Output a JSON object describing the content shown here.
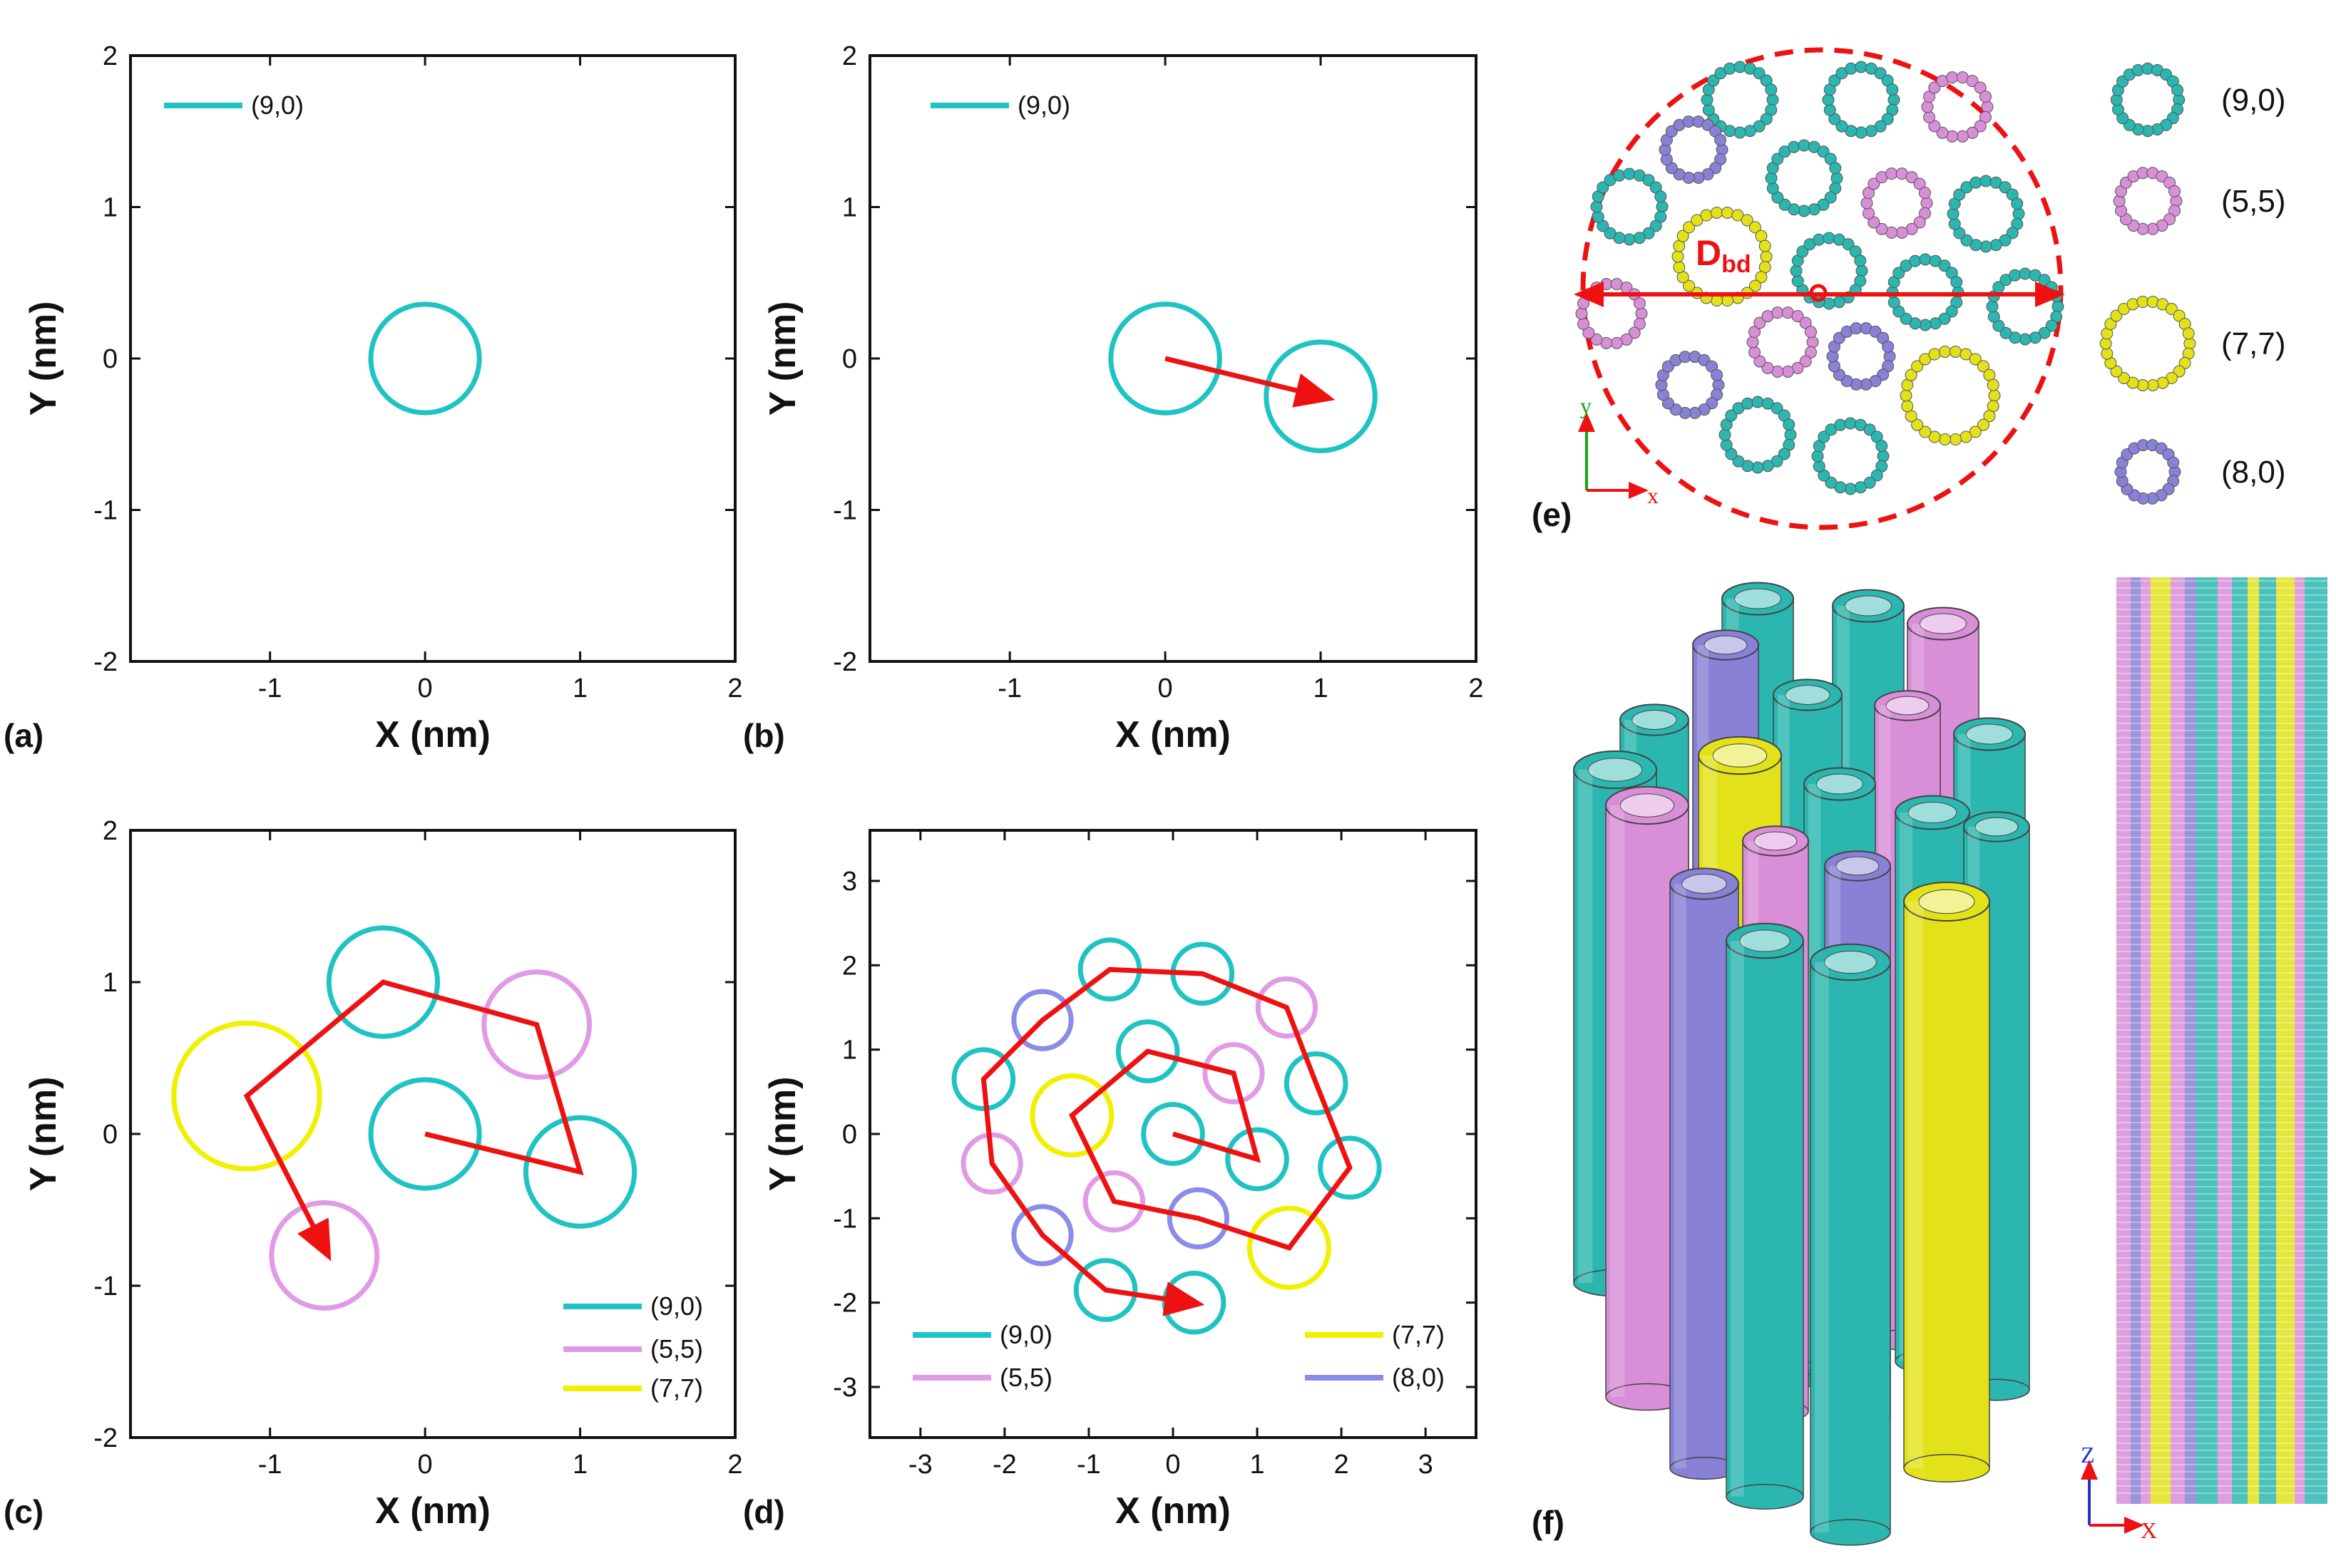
{
  "colors": {
    "cyan": "#1fc3c3",
    "pink": "#e09ae6",
    "yellow": "#f0f000",
    "blue": "#8a8de8",
    "red": "#ee1111",
    "atom_cyan": "#2bb7b0",
    "atom_pink": "#d98ed8",
    "atom_yellow": "#e3e21a",
    "atom_blue": "#8881d6"
  },
  "chart_data": [
    {
      "panel_label": "(a)",
      "type": "scatter",
      "xlabel": "X (nm)",
      "ylabel": "Y (nm)",
      "xlim": [
        -1.9,
        2.0
      ],
      "ylim": [
        -2,
        2
      ],
      "xticks": [
        -1,
        0,
        1,
        2
      ],
      "yticks": [
        -2,
        -1,
        0,
        1,
        2
      ],
      "series": [
        {
          "name": "(9,0)",
          "color_key": "cyan"
        }
      ],
      "circles": [
        {
          "x": 0,
          "y": 0,
          "r": 0.35,
          "type": "(9,0)"
        }
      ],
      "path": [],
      "legend": [
        {
          "label": "(9,0)",
          "color_key": "cyan"
        }
      ]
    },
    {
      "panel_label": "(b)",
      "type": "scatter",
      "xlabel": "X (nm)",
      "ylabel": "Y (nm)",
      "xlim": [
        -1.9,
        2.0
      ],
      "ylim": [
        -2,
        2
      ],
      "xticks": [
        -1,
        0,
        1,
        2
      ],
      "yticks": [
        -2,
        -1,
        0,
        1,
        2
      ],
      "circles": [
        {
          "x": 0,
          "y": 0,
          "r": 0.35,
          "type": "(9,0)"
        },
        {
          "x": 1.0,
          "y": -0.25,
          "r": 0.35,
          "type": "(9,0)"
        }
      ],
      "path": [
        [
          0,
          0
        ],
        [
          1.0,
          -0.25
        ]
      ],
      "legend": [
        {
          "label": "(9,0)",
          "color_key": "cyan"
        }
      ]
    },
    {
      "panel_label": "(c)",
      "type": "scatter",
      "xlabel": "X (nm)",
      "ylabel": "Y (nm)",
      "xlim": [
        -1.9,
        2.0
      ],
      "ylim": [
        -2,
        2
      ],
      "xticks": [
        -1,
        0,
        1,
        2
      ],
      "yticks": [
        -2,
        -1,
        0,
        1,
        2
      ],
      "circles": [
        {
          "x": 0,
          "y": 0,
          "r": 0.35,
          "type": "(9,0)"
        },
        {
          "x": 1.0,
          "y": -0.25,
          "r": 0.35,
          "type": "(9,0)"
        },
        {
          "x": 0.72,
          "y": 0.72,
          "r": 0.34,
          "type": "(5,5)"
        },
        {
          "x": -0.27,
          "y": 1.0,
          "r": 0.35,
          "type": "(9,0)"
        },
        {
          "x": -1.15,
          "y": 0.25,
          "r": 0.47,
          "type": "(7,7)"
        },
        {
          "x": -0.65,
          "y": -0.8,
          "r": 0.34,
          "type": "(5,5)"
        }
      ],
      "path": [
        [
          0,
          0
        ],
        [
          1.0,
          -0.25
        ],
        [
          0.72,
          0.72
        ],
        [
          -0.27,
          1.0
        ],
        [
          -1.15,
          0.25
        ],
        [
          -0.65,
          -0.75
        ]
      ],
      "legend": [
        {
          "label": "(9,0)",
          "color_key": "cyan"
        },
        {
          "label": "(5,5)",
          "color_key": "pink"
        },
        {
          "label": "(7,7)",
          "color_key": "yellow"
        }
      ]
    },
    {
      "panel_label": "(d)",
      "type": "scatter",
      "xlabel": "X (nm)",
      "ylabel": "Y (nm)",
      "xlim": [
        -3.6,
        3.6
      ],
      "ylim": [
        -3.6,
        3.6
      ],
      "xticks": [
        -3,
        -2,
        -1,
        0,
        1,
        2,
        3
      ],
      "yticks": [
        -3,
        -2,
        -1,
        0,
        1,
        2,
        3
      ],
      "circles": [
        {
          "x": 0,
          "y": 0,
          "r": 0.35,
          "type": "(9,0)"
        },
        {
          "x": 1.0,
          "y": -0.3,
          "r": 0.35,
          "type": "(9,0)"
        },
        {
          "x": 0.72,
          "y": 0.72,
          "r": 0.34,
          "type": "(5,5)"
        },
        {
          "x": -0.3,
          "y": 0.98,
          "r": 0.35,
          "type": "(9,0)"
        },
        {
          "x": -1.2,
          "y": 0.22,
          "r": 0.47,
          "type": "(7,7)"
        },
        {
          "x": -0.7,
          "y": -0.8,
          "r": 0.34,
          "type": "(5,5)"
        },
        {
          "x": 0.3,
          "y": -1.0,
          "r": 0.34,
          "type": "(8,0)"
        },
        {
          "x": 1.38,
          "y": -1.35,
          "r": 0.47,
          "type": "(7,7)"
        },
        {
          "x": 2.1,
          "y": -0.4,
          "r": 0.35,
          "type": "(9,0)"
        },
        {
          "x": 1.7,
          "y": 0.6,
          "r": 0.35,
          "type": "(9,0)"
        },
        {
          "x": 1.35,
          "y": 1.5,
          "r": 0.34,
          "type": "(5,5)"
        },
        {
          "x": 0.35,
          "y": 1.9,
          "r": 0.35,
          "type": "(9,0)"
        },
        {
          "x": -0.75,
          "y": 1.95,
          "r": 0.35,
          "type": "(9,0)"
        },
        {
          "x": -1.55,
          "y": 1.35,
          "r": 0.34,
          "type": "(8,0)"
        },
        {
          "x": -2.25,
          "y": 0.65,
          "r": 0.35,
          "type": "(9,0)"
        },
        {
          "x": -2.15,
          "y": -0.35,
          "r": 0.34,
          "type": "(5,5)"
        },
        {
          "x": -1.55,
          "y": -1.2,
          "r": 0.34,
          "type": "(8,0)"
        },
        {
          "x": -0.8,
          "y": -1.85,
          "r": 0.35,
          "type": "(9,0)"
        },
        {
          "x": 0.25,
          "y": -2.0,
          "r": 0.35,
          "type": "(9,0)"
        }
      ],
      "path": [
        [
          0,
          0
        ],
        [
          1.0,
          -0.3
        ],
        [
          0.72,
          0.72
        ],
        [
          -0.3,
          0.98
        ],
        [
          -1.2,
          0.22
        ],
        [
          -0.7,
          -0.8
        ],
        [
          0.3,
          -1.0
        ],
        [
          1.38,
          -1.35
        ],
        [
          2.1,
          -0.4
        ],
        [
          1.7,
          0.6
        ],
        [
          1.35,
          1.5
        ],
        [
          0.35,
          1.9
        ],
        [
          -0.75,
          1.95
        ],
        [
          -1.55,
          1.35
        ],
        [
          -2.25,
          0.65
        ],
        [
          -2.15,
          -0.35
        ],
        [
          -1.55,
          -1.2
        ],
        [
          -0.8,
          -1.85
        ],
        [
          0.2,
          -2.0
        ]
      ],
      "legend": [
        {
          "label": "(9,0)",
          "color_key": "cyan"
        },
        {
          "label": "(5,5)",
          "color_key": "pink"
        },
        {
          "label": "(7,7)",
          "color_key": "yellow"
        },
        {
          "label": "(8,0)",
          "color_key": "blue"
        }
      ]
    }
  ],
  "panel_e": {
    "panel_label": "(e)",
    "dimension_label": "D",
    "dimension_sub": "bd",
    "axis_y": "y",
    "axis_x": "x",
    "legend": [
      {
        "label": "(9,0)",
        "color_key": "atom_cyan"
      },
      {
        "label": "(5,5)",
        "color_key": "atom_pink"
      },
      {
        "label": "(7,7)",
        "color_key": "atom_yellow"
      },
      {
        "label": "(8,0)",
        "color_key": "atom_blue"
      }
    ]
  },
  "panel_f": {
    "panel_label": "(f)",
    "axis_z": "Z",
    "axis_x": "X"
  }
}
